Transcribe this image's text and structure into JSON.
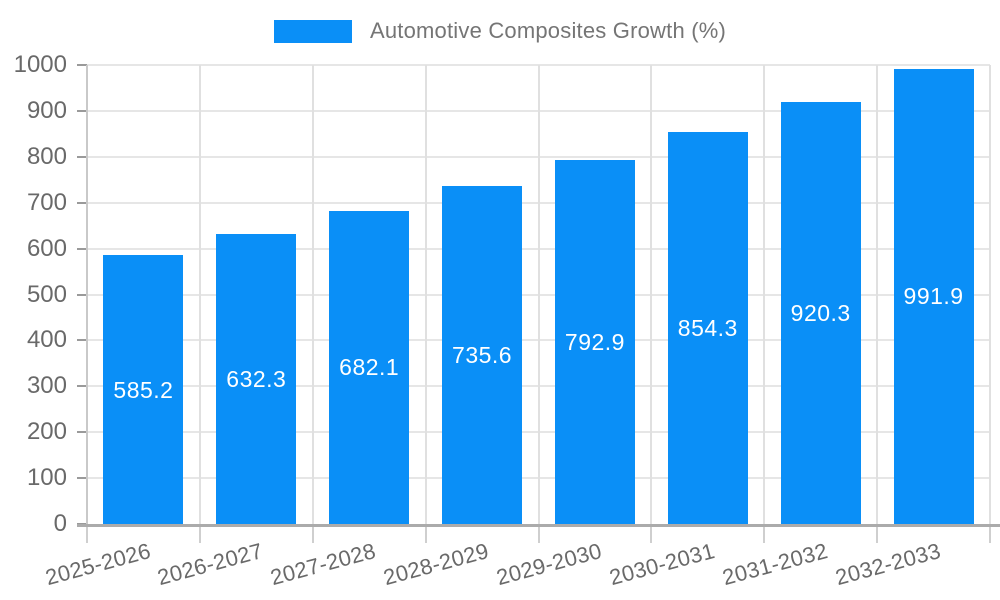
{
  "legend": {
    "label": "Automotive Composites Growth (%)"
  },
  "colors": {
    "bar": "#0a8ff7",
    "legend_text": "#757575",
    "tick_text": "#696969",
    "value_text": "#ffffff",
    "grid_h": "#e6e6e6",
    "grid_v": "#e0e0e0",
    "baseline": "#ababab",
    "axis_left": "#c9c9c9"
  },
  "chart_data": {
    "type": "bar",
    "title": "",
    "xlabel": "",
    "ylabel": "",
    "categories": [
      "2025-2026",
      "2026-2027",
      "2027-2028",
      "2028-2029",
      "2029-2030",
      "2030-2031",
      "2031-2032",
      "2032-2033"
    ],
    "series": [
      {
        "name": "Automotive Composites Growth (%)",
        "values": [
          585.2,
          632.3,
          682.1,
          735.6,
          792.9,
          854.3,
          920.3,
          991.9
        ]
      }
    ],
    "value_labels": [
      "585.2",
      "632.3",
      "682.1",
      "735.6",
      "792.9",
      "854.3",
      "920.3",
      "991.9"
    ],
    "value_label_position": "inside-center",
    "ylim": [
      0,
      1000
    ],
    "yticks": [
      "0",
      "100",
      "200",
      "300",
      "400",
      "500",
      "600",
      "700",
      "800",
      "900",
      "1000"
    ],
    "grid": true,
    "legend_position": "top",
    "x_label_rotation_deg": -15
  }
}
